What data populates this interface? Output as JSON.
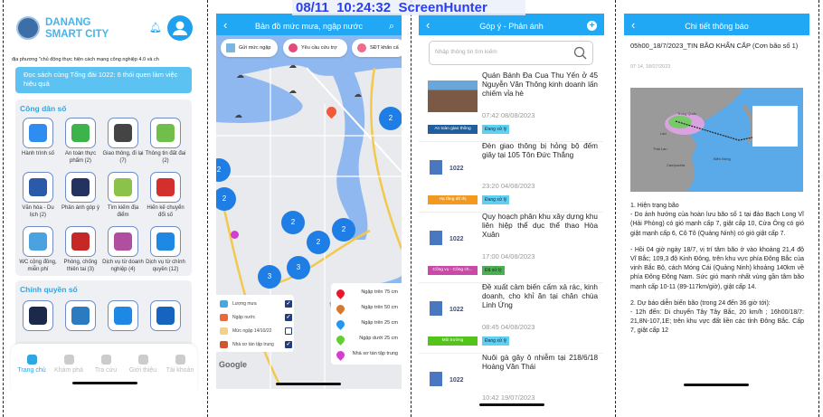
{
  "watermark": {
    "date": "08/11",
    "time": "10:24:32",
    "app": "ScreenHunter"
  },
  "home": {
    "brand_line1": "DANANG",
    "brand_line2": "SMART CITY",
    "marquee": "địa phương \"chủ động thực hiện cách mạng công nghiệp 4.0 và ch",
    "banner": "Đọc sách cùng Tổng đài 1022: 6 thói quen làm việc hiệu quả",
    "section1_title": "Công dân số",
    "section1_items": [
      {
        "label": "Hành trình số",
        "icon": "digital-journey-icon",
        "color": "#2f8cf0"
      },
      {
        "label": "An toàn thực phẩm (2)",
        "icon": "food-safety-shield-icon",
        "color": "#3cb44b"
      },
      {
        "label": "Giao thông, đi lại (7)",
        "icon": "traffic-light-icon",
        "color": "#444"
      },
      {
        "label": "Thông tin đất đai (2)",
        "icon": "land-map-icon",
        "color": "#6fbf4a"
      },
      {
        "label": "Văn hóa - Du lịch (2)",
        "icon": "passport-icon",
        "color": "#2a5aa8"
      },
      {
        "label": "Phản ánh góp ý",
        "icon": "feedback-pen-icon",
        "color": "#23325e"
      },
      {
        "label": "Tìm kiếm địa điểm",
        "icon": "map-pin-icon",
        "color": "#8bc34a"
      },
      {
        "label": "Hiến kế chuyển đổi số",
        "icon": "youth-union-icon",
        "color": "#d32f2f"
      },
      {
        "label": "WC cộng đồng, miễn phí",
        "icon": "wc-icon",
        "color": "#4aa3df"
      },
      {
        "label": "Phòng, chống thiên tai (3)",
        "icon": "disaster-emblem-icon",
        "color": "#c62828"
      },
      {
        "label": "Dịch vụ từ doanh nghiệp (4)",
        "icon": "layers-icon",
        "color": "#b04fa0"
      },
      {
        "label": "Dịch vụ từ chính quyền (12)",
        "icon": "cloud-sync-icon",
        "color": "#1e88e5"
      }
    ],
    "section2_title": "Chính quyền số",
    "section2_items": [
      {
        "icon": "document-binders-icon",
        "color": "#1b2a4a"
      },
      {
        "icon": "city-logo-icon",
        "color": "#2a7bc0"
      },
      {
        "icon": "mail-icon",
        "color": "#1e88e5"
      },
      {
        "icon": "document-folder-icon",
        "color": "#1565c0"
      }
    ],
    "nav": [
      {
        "label": "Trang chủ",
        "icon": "home-icon",
        "active": true
      },
      {
        "label": "Khám phá",
        "icon": "grid-icon",
        "active": false
      },
      {
        "label": "Tra cứu",
        "icon": "search-icon",
        "active": false
      },
      {
        "label": "Giới thiệu",
        "icon": "link-icon",
        "active": false
      },
      {
        "label": "Tài khoản",
        "icon": "account-icon",
        "active": false
      }
    ]
  },
  "map": {
    "title": "Bản đồ mức mưa, ngập nước",
    "chips": [
      "Gửi mức ngập",
      "Yêu cầu cứu trợ",
      "SĐT khẩn cấ"
    ],
    "clusters": [
      "2",
      "2",
      "2",
      "2",
      "2",
      "2",
      "3",
      "3"
    ],
    "layers": [
      {
        "label": "Lượng mưa",
        "checked": true
      },
      {
        "label": "Ngập nước",
        "checked": true
      },
      {
        "label": "Mức ngập 14/10/22",
        "checked": false
      },
      {
        "label": "Nhà sơ tán tập trung",
        "checked": true
      }
    ],
    "legend": [
      {
        "label": "Ngập trên 75 cm",
        "color": "#e8172a"
      },
      {
        "label": "Ngập trên 50 cm",
        "color": "#d9782a"
      },
      {
        "label": "Ngập trên 25 cm",
        "color": "#2196f3"
      },
      {
        "label": "Ngập dưới 25 cm",
        "color": "#5fd12e"
      },
      {
        "label": "Nhà sơ tán tập trung",
        "color": "#d23fd0"
      }
    ],
    "google": "Google"
  },
  "feedback": {
    "title": "Góp ý - Phản ánh",
    "search_placeholder": "Nhập thông tin tìm kiếm",
    "items": [
      {
        "title": "Quán Bánh Đa Cua Thu Yến ở 45 Nguyễn Văn Thông kinh doanh lấn chiếm vỉa hè",
        "time": "07:42 08/08/2023",
        "category": "An toàn giao thông",
        "cat_color": "#1f5f9e",
        "status": "Đang xử lý",
        "st_color": "#5fd0f0"
      },
      {
        "title": "Đèn giao thông bị hỏng bộ đếm giây tại 105 Tôn Đức Thắng",
        "time": "23:20 04/08/2023",
        "category": "Hạ tầng đô thị",
        "cat_color": "#f39a1e",
        "status": "Đang xử lý",
        "st_color": "#5fd0f0"
      },
      {
        "title": "Quy hoạch phân khu xây dựng khu liên hiệp thể dục thể thao Hòa Xuân",
        "time": "17:00 04/08/2023",
        "category": "Công vụ - Công ch...",
        "cat_color": "#c94aa8",
        "status": "Đã xử lý",
        "st_color": "#4caf50"
      },
      {
        "title": "Đề xuất cảm biến cấm xả rác, kinh doanh, cho khỉ ăn tại chân chùa Linh Ứng",
        "time": "08:45 04/08/2023",
        "category": "Môi trường",
        "cat_color": "#52c41a",
        "status": "Đang xử lý",
        "st_color": "#5fd0f0"
      },
      {
        "title": "Nuôi gà gây ô nhiễm tại 218/6/18 Hoàng Văn Thái",
        "time": "10:42 19/07/2023"
      }
    ],
    "thumb_text": "1022"
  },
  "notice": {
    "title": "Chi tiết thông báo",
    "headline": "05h00_18/7/2023_TIN BÃO KHẨN CẤP (Cơn bão số 1)",
    "date": "07:14, 18/07/2023",
    "map_labels": [
      "Trung Quốc",
      "Lào",
      "Thái Lan",
      "Campuchia",
      "Biển Đông"
    ],
    "p1_heading": "1.    Hiện trạng bão",
    "p1": "- Do ảnh hưởng của hoàn lưu bão số 1 tại đảo Bạch Long Vĩ (Hải Phòng) có gió mạnh cấp 7, giật cấp 10, Cửa Ông có gió giật mạnh cấp 6, Cô Tô (Quảng Ninh) có gió giật cấp 7.",
    "p2": "- Hồi 04 giờ ngày 18/7, vị trí tâm bão ở vào khoảng 21,4 độ Vĩ Bắc; 109,3 độ Kinh Đông, trên khu vực phía Đông Bắc của vịnh Bắc Bộ, cách Móng Cái (Quảng Ninh) khoảng 140km về phía Đông Đông Nam. Sức gió mạnh nhất vùng gần tâm bão mạnh cấp 10-11 (89-117km/giờ), giật cấp 14.",
    "p3_heading": "2. Dự báo diễn biến bão (trong 24 đến 36 giờ tới):",
    "p3": "- 12h đến: Di chuyển Tây Tây Bắc, 20 km/h ; 16h00/18/7: 21,8N-107,1E; trên khu vực đất liền các tỉnh Đông Bắc. Cấp 7, giật cấp 12"
  }
}
